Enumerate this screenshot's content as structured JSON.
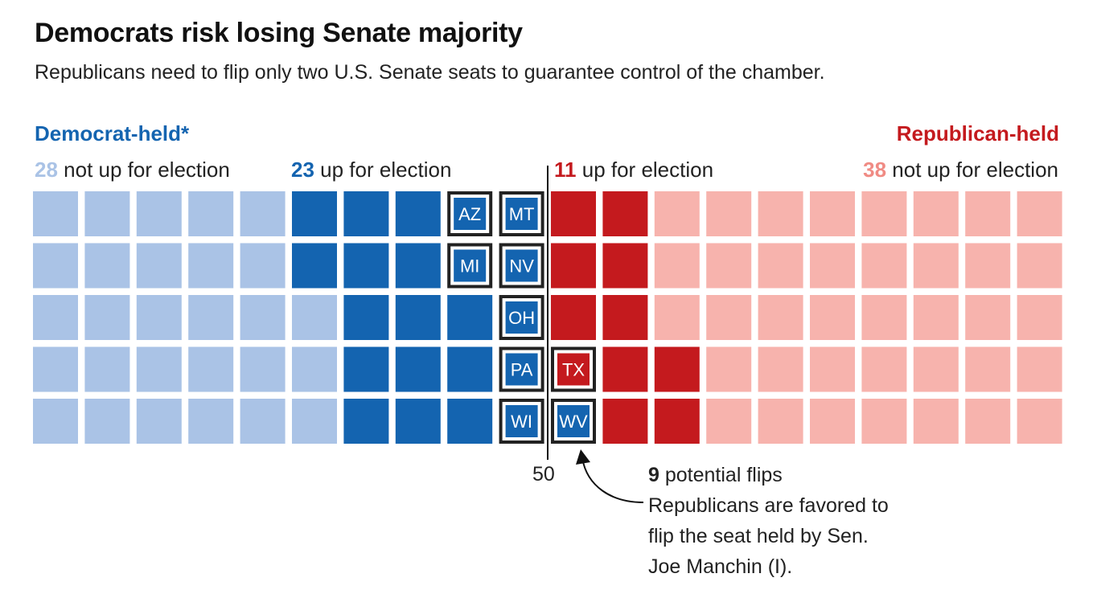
{
  "title": "Democrats risk losing Senate majority",
  "subtitle": "Republicans need to flip only two U.S. Senate seats to guarantee control of the chamber.",
  "colors": {
    "dem_not_up": "#aac3e6",
    "dem_up": "#1464b0",
    "rep_up": "#c41a1e",
    "rep_not_up": "#f7b3ad",
    "flip_border": "#222222"
  },
  "labels": {
    "dem_side": "Democrat-held*",
    "rep_side": "Republican-held",
    "dem_not_up_count": "28",
    "dem_not_up_text": "not up for election",
    "dem_up_count": "23",
    "dem_up_text": "up for election",
    "rep_up_count": "11",
    "rep_up_text": "up for election",
    "rep_not_up_count": "38",
    "rep_not_up_text": "not up for election",
    "majority_line": "50"
  },
  "annotation": {
    "count": "9",
    "headline": "potential flips",
    "line1": "Republicans are favored to",
    "line2": "flip the seat held by Sen.",
    "line3": "Joe Manchin (I)."
  },
  "chart_data": {
    "type": "waffle",
    "total_seats": 100,
    "majority_threshold": 50,
    "groups": [
      {
        "name": "Democrat-held, not up for election",
        "seats": 28,
        "color_key": "dem_not_up"
      },
      {
        "name": "Democrat-held, up for election",
        "seats": 23,
        "color_key": "dem_up"
      },
      {
        "name": "Republican-held, up for election",
        "seats": 11,
        "color_key": "rep_up"
      },
      {
        "name": "Republican-held, not up for election",
        "seats": 38,
        "color_key": "rep_not_up"
      }
    ],
    "potential_flips": [
      {
        "state": "AZ",
        "party": "dem"
      },
      {
        "state": "MI",
        "party": "dem"
      },
      {
        "state": "MT",
        "party": "dem"
      },
      {
        "state": "NV",
        "party": "dem"
      },
      {
        "state": "OH",
        "party": "dem"
      },
      {
        "state": "PA",
        "party": "dem"
      },
      {
        "state": "WI",
        "party": "dem"
      },
      {
        "state": "TX",
        "party": "rep"
      },
      {
        "state": "WV",
        "party": "dem"
      }
    ],
    "columns": [
      {
        "col": 0,
        "cells": [
          "dem_not_up",
          "dem_not_up",
          "dem_not_up",
          "dem_not_up",
          "dem_not_up"
        ]
      },
      {
        "col": 1,
        "cells": [
          "dem_not_up",
          "dem_not_up",
          "dem_not_up",
          "dem_not_up",
          "dem_not_up"
        ]
      },
      {
        "col": 2,
        "cells": [
          "dem_not_up",
          "dem_not_up",
          "dem_not_up",
          "dem_not_up",
          "dem_not_up"
        ]
      },
      {
        "col": 3,
        "cells": [
          "dem_not_up",
          "dem_not_up",
          "dem_not_up",
          "dem_not_up",
          "dem_not_up"
        ]
      },
      {
        "col": 4,
        "cells": [
          "dem_not_up",
          "dem_not_up",
          "dem_not_up",
          "dem_not_up",
          "dem_not_up"
        ]
      },
      {
        "col": 5,
        "cells": [
          "dem_up",
          "dem_up",
          "dem_not_up",
          "dem_not_up",
          "dem_not_up"
        ]
      },
      {
        "col": 6,
        "cells": [
          "dem_up",
          "dem_up",
          "dem_up",
          "dem_up",
          "dem_up"
        ]
      },
      {
        "col": 7,
        "cells": [
          "dem_up",
          "dem_up",
          "dem_up",
          "dem_up",
          "dem_up"
        ]
      },
      {
        "col": 8,
        "cells": [
          "AZ",
          "MI",
          "dem_up",
          "dem_up",
          "dem_up"
        ]
      },
      {
        "col": 9,
        "cells": [
          "MT",
          "NV",
          "OH",
          "PA",
          "WI"
        ]
      },
      {
        "col": 10,
        "cells": [
          "rep_up",
          "rep_up",
          "rep_up",
          "TX",
          "WV"
        ]
      },
      {
        "col": 11,
        "cells": [
          "rep_up",
          "rep_up",
          "rep_up",
          "rep_up",
          "rep_up"
        ]
      },
      {
        "col": 12,
        "cells": [
          "rep_not_up",
          "rep_not_up",
          "rep_not_up",
          "rep_up",
          "rep_up"
        ]
      },
      {
        "col": 13,
        "cells": [
          "rep_not_up",
          "rep_not_up",
          "rep_not_up",
          "rep_not_up",
          "rep_not_up"
        ]
      },
      {
        "col": 14,
        "cells": [
          "rep_not_up",
          "rep_not_up",
          "rep_not_up",
          "rep_not_up",
          "rep_not_up"
        ]
      },
      {
        "col": 15,
        "cells": [
          "rep_not_up",
          "rep_not_up",
          "rep_not_up",
          "rep_not_up",
          "rep_not_up"
        ]
      },
      {
        "col": 16,
        "cells": [
          "rep_not_up",
          "rep_not_up",
          "rep_not_up",
          "rep_not_up",
          "rep_not_up"
        ]
      },
      {
        "col": 17,
        "cells": [
          "rep_not_up",
          "rep_not_up",
          "rep_not_up",
          "rep_not_up",
          "rep_not_up"
        ]
      },
      {
        "col": 18,
        "cells": [
          "rep_not_up",
          "rep_not_up",
          "rep_not_up",
          "rep_not_up",
          "rep_not_up"
        ]
      },
      {
        "col": 19,
        "cells": [
          "rep_not_up",
          "rep_not_up",
          "rep_not_up",
          "rep_not_up",
          "rep_not_up"
        ]
      }
    ]
  }
}
